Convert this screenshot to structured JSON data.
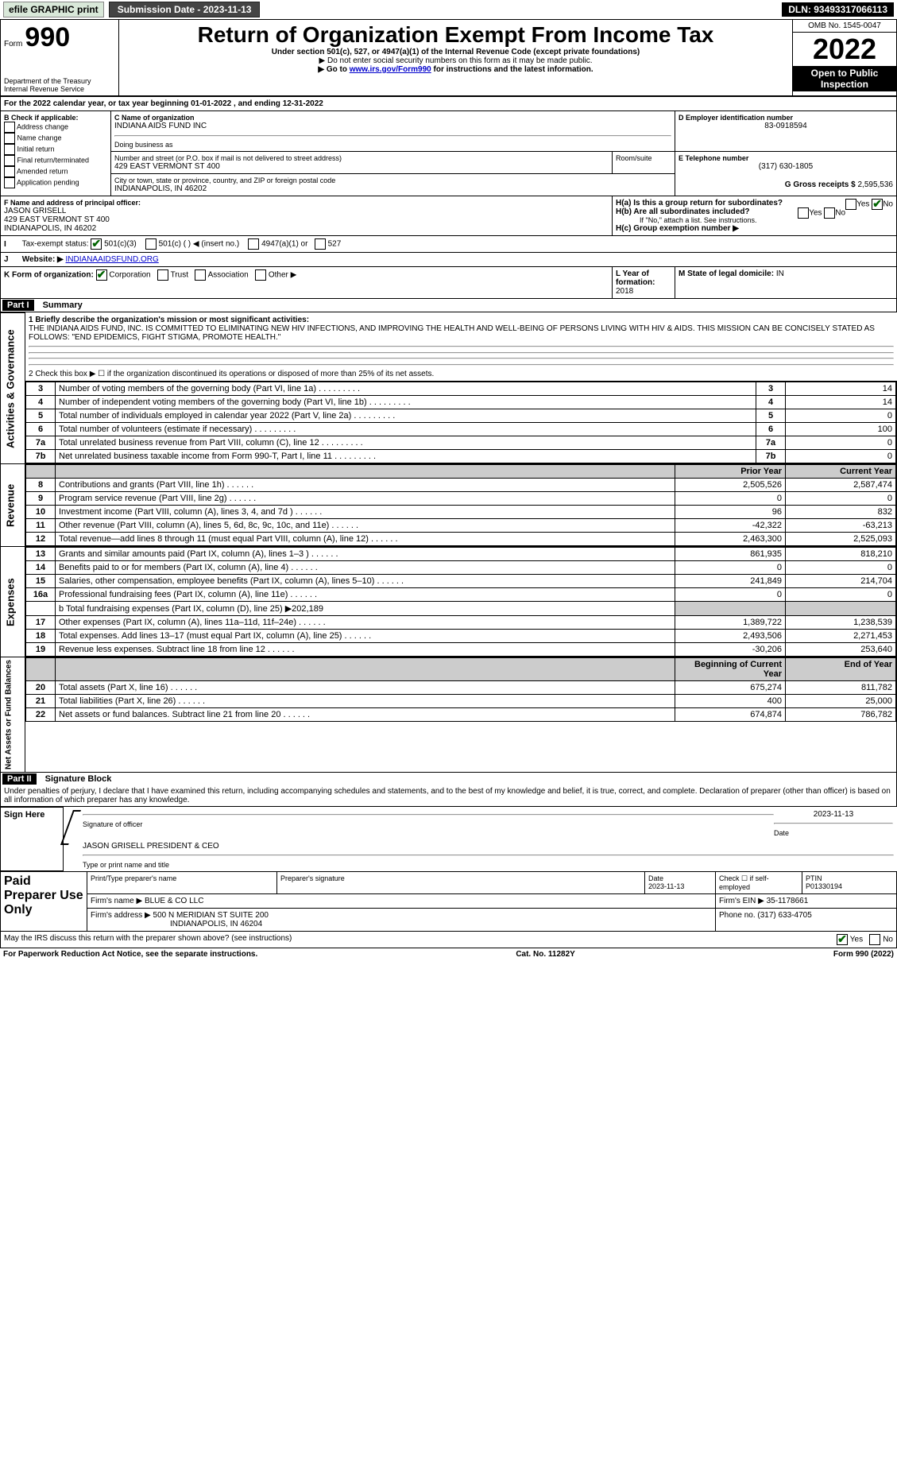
{
  "topbar": {
    "efile": "efile GRAPHIC print",
    "submission_label": "Submission Date - 2023-11-13",
    "dln": "DLN: 93493317066113"
  },
  "header": {
    "form_label_prefix": "Form",
    "form_number": "990",
    "title": "Return of Organization Exempt From Income Tax",
    "subtitle": "Under section 501(c), 527, or 4947(a)(1) of the Internal Revenue Code (except private foundations)",
    "ssn_note": "▶ Do not enter social security numbers on this form as it may be made public.",
    "goto_prefix": "▶ Go to ",
    "goto_link": "www.irs.gov/Form990",
    "goto_suffix": " for instructions and the latest information.",
    "dept": "Department of the Treasury",
    "irs": "Internal Revenue Service",
    "omb": "OMB No. 1545-0047",
    "year": "2022",
    "open_public": "Open to Public Inspection"
  },
  "section_a": {
    "calendar_text": "For the 2022 calendar year, or tax year beginning 01-01-2022     , and ending 12-31-2022",
    "b_label": "B Check if applicable:",
    "b_items": [
      "Address change",
      "Name change",
      "Initial return",
      "Final return/terminated",
      "Amended return",
      "Application pending"
    ],
    "c_label": "C Name of organization",
    "org_name": "INDIANA AIDS FUND INC",
    "dba_label": "Doing business as",
    "street_label": "Number and street (or P.O. box if mail is not delivered to street address)",
    "room_label": "Room/suite",
    "street": "429 EAST VERMONT ST 400",
    "city_label": "City or town, state or province, country, and ZIP or foreign postal code",
    "city": "INDIANAPOLIS, IN  46202",
    "d_label": "D Employer identification number",
    "ein": "83-0918594",
    "e_label": "E Telephone number",
    "phone": "(317) 630-1805",
    "g_label": "G Gross receipts $",
    "gross": "2,595,536",
    "f_label": "F Name and address of principal officer:",
    "officer_name": "JASON GRISELL",
    "officer_addr1": "429 EAST VERMONT ST 400",
    "officer_addr2": "INDIANAPOLIS, IN  46202",
    "ha_label": "H(a)  Is this a group return for subordinates?",
    "hb_label": "H(b)  Are all subordinates included?",
    "hb_note": "If \"No,\" attach a list. See instructions.",
    "hc_label": "H(c)  Group exemption number ▶",
    "yes": "Yes",
    "no": "No",
    "i_label": "Tax-exempt status:",
    "i_501c3": "501(c)(3)",
    "i_501c": "501(c) (    ) ◀ (insert no.)",
    "i_4947": "4947(a)(1) or",
    "i_527": "527",
    "j_label": "Website: ▶",
    "website": "INDIANAAIDSFUND.ORG",
    "k_label": "K Form of organization:",
    "k_corp": "Corporation",
    "k_trust": "Trust",
    "k_assoc": "Association",
    "k_other": "Other ▶",
    "l_label": "L Year of formation:",
    "l_val": "2018",
    "m_label": "M State of legal domicile:",
    "m_val": "IN"
  },
  "part1": {
    "label": "Part I",
    "title": "Summary",
    "side_ag": "Activities & Governance",
    "side_rev": "Revenue",
    "side_exp": "Expenses",
    "side_net": "Net Assets or Fund Balances",
    "line1_label": "1 Briefly describe the organization's mission or most significant activities:",
    "line1_text": "THE INDIANA AIDS FUND, INC. IS COMMITTED TO ELIMINATING NEW HIV INFECTIONS, AND IMPROVING THE HEALTH AND WELL-BEING OF PERSONS LIVING WITH HIV & AIDS. THIS MISSION CAN BE CONCISELY STATED AS FOLLOWS: \"END EPIDEMICS, FIGHT STIGMA, PROMOTE HEALTH.\"",
    "line2": "2  Check this box ▶ ☐ if the organization discontinued its operations or disposed of more than 25% of its net assets.",
    "prior_year": "Prior Year",
    "current_year": "Current Year",
    "beg_year": "Beginning of Current Year",
    "end_year": "End of Year",
    "rows_single": [
      {
        "n": "3",
        "t": "Number of voting members of the governing body (Part VI, line 1a)",
        "v": "14"
      },
      {
        "n": "4",
        "t": "Number of independent voting members of the governing body (Part VI, line 1b)",
        "v": "14"
      },
      {
        "n": "5",
        "t": "Total number of individuals employed in calendar year 2022 (Part V, line 2a)",
        "v": "0"
      },
      {
        "n": "6",
        "t": "Total number of volunteers (estimate if necessary)",
        "v": "100"
      },
      {
        "n": "7a",
        "t": "Total unrelated business revenue from Part VIII, column (C), line 12",
        "v": "0"
      },
      {
        "n": "7b",
        "t": "Net unrelated business taxable income from Form 990-T, Part I, line 11",
        "v": "0"
      }
    ],
    "rows_rev": [
      {
        "n": "8",
        "t": "Contributions and grants (Part VIII, line 1h)",
        "p": "2,505,526",
        "c": "2,587,474"
      },
      {
        "n": "9",
        "t": "Program service revenue (Part VIII, line 2g)",
        "p": "0",
        "c": "0"
      },
      {
        "n": "10",
        "t": "Investment income (Part VIII, column (A), lines 3, 4, and 7d )",
        "p": "96",
        "c": "832"
      },
      {
        "n": "11",
        "t": "Other revenue (Part VIII, column (A), lines 5, 6d, 8c, 9c, 10c, and 11e)",
        "p": "-42,322",
        "c": "-63,213"
      },
      {
        "n": "12",
        "t": "Total revenue—add lines 8 through 11 (must equal Part VIII, column (A), line 12)",
        "p": "2,463,300",
        "c": "2,525,093"
      }
    ],
    "rows_exp": [
      {
        "n": "13",
        "t": "Grants and similar amounts paid (Part IX, column (A), lines 1–3 )",
        "p": "861,935",
        "c": "818,210"
      },
      {
        "n": "14",
        "t": "Benefits paid to or for members (Part IX, column (A), line 4)",
        "p": "0",
        "c": "0"
      },
      {
        "n": "15",
        "t": "Salaries, other compensation, employee benefits (Part IX, column (A), lines 5–10)",
        "p": "241,849",
        "c": "214,704"
      },
      {
        "n": "16a",
        "t": "Professional fundraising fees (Part IX, column (A), line 11e)",
        "p": "0",
        "c": "0"
      }
    ],
    "row_16b": "b  Total fundraising expenses (Part IX, column (D), line 25) ▶202,189",
    "rows_exp2": [
      {
        "n": "17",
        "t": "Other expenses (Part IX, column (A), lines 11a–11d, 11f–24e)",
        "p": "1,389,722",
        "c": "1,238,539"
      },
      {
        "n": "18",
        "t": "Total expenses. Add lines 13–17 (must equal Part IX, column (A), line 25)",
        "p": "2,493,506",
        "c": "2,271,453"
      },
      {
        "n": "19",
        "t": "Revenue less expenses. Subtract line 18 from line 12",
        "p": "-30,206",
        "c": "253,640"
      }
    ],
    "rows_net": [
      {
        "n": "20",
        "t": "Total assets (Part X, line 16)",
        "p": "675,274",
        "c": "811,782"
      },
      {
        "n": "21",
        "t": "Total liabilities (Part X, line 26)",
        "p": "400",
        "c": "25,000"
      },
      {
        "n": "22",
        "t": "Net assets or fund balances. Subtract line 21 from line 20",
        "p": "674,874",
        "c": "786,782"
      }
    ]
  },
  "part2": {
    "label": "Part II",
    "title": "Signature Block",
    "declaration": "Under penalties of perjury, I declare that I have examined this return, including accompanying schedules and statements, and to the best of my knowledge and belief, it is true, correct, and complete. Declaration of preparer (other than officer) is based on all information of which preparer has any knowledge.",
    "sign_here": "Sign Here",
    "sig_officer": "Signature of officer",
    "sig_date": "Date",
    "sig_date_val": "2023-11-13",
    "officer_print": "JASON GRISELL  PRESIDENT & CEO",
    "type_print": "Type or print name and title",
    "paid": "Paid Preparer Use Only",
    "print_name_label": "Print/Type preparer's name",
    "prep_sig_label": "Preparer's signature",
    "date_label": "Date",
    "date_val": "2023-11-13",
    "check_if": "Check ☐ if self-employed",
    "ptin_label": "PTIN",
    "ptin": "P01330194",
    "firm_name_label": "Firm's name    ▶",
    "firm_name": "BLUE & CO LLC",
    "firm_ein_label": "Firm's EIN ▶",
    "firm_ein": "35-1178661",
    "firm_addr_label": "Firm's address ▶",
    "firm_addr1": "500 N MERIDIAN ST SUITE 200",
    "firm_addr2": "INDIANAPOLIS, IN  46204",
    "phone_label": "Phone no.",
    "phone": "(317) 633-4705",
    "may_irs": "May the IRS discuss this return with the preparer shown above? (see instructions)",
    "paperwork": "For Paperwork Reduction Act Notice, see the separate instructions.",
    "cat": "Cat. No. 11282Y",
    "form_foot": "Form 990 (2022)"
  }
}
